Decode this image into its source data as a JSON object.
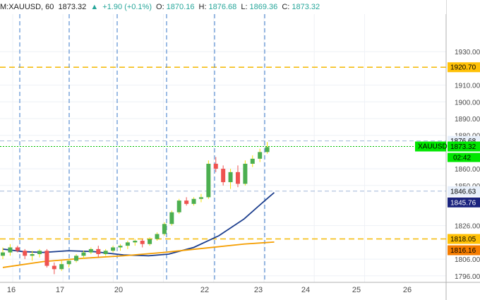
{
  "header": {
    "symbol": "M:XAUUSD, 60",
    "price": "1873.32",
    "change_icon": "triangle-up-icon",
    "change": "+1.90 (+0.1%)",
    "o_label": "O:",
    "o_val": "1870.16",
    "h_label": "H:",
    "h_val": "1876.68",
    "l_label": "L:",
    "l_val": "1869.36",
    "c_label": "C:",
    "c_val": "1873.32"
  },
  "axis": {
    "y_ticks": [
      "1930.00",
      "1910.00",
      "1900.00",
      "1890.00",
      "1880.00",
      "1860.00",
      "1850.00",
      "1826.00",
      "1806.00",
      "1796.00"
    ],
    "x_ticks": [
      "16",
      "17",
      "20",
      "22",
      "23",
      "24",
      "25",
      "26"
    ],
    "countdown": "02:42"
  },
  "price_tags": [
    {
      "id": "tag-1920",
      "text": "1920.70",
      "bg": "#ffc107",
      "color": "#000000"
    },
    {
      "id": "tag-1876",
      "text": "1876.68",
      "bg": "#e8f0fb",
      "color": "#000000"
    },
    {
      "id": "tag-1873",
      "text": "1873.32",
      "bg": "#00e600",
      "color": "#000000",
      "label": "XAUUSD"
    },
    {
      "id": "tag-1846-63",
      "text": "1846.63",
      "bg": "#e8f0fb",
      "color": "#000000"
    },
    {
      "id": "tag-1845",
      "text": "1845.76",
      "bg": "#1a237e",
      "color": "#ffffff"
    },
    {
      "id": "tag-1818",
      "text": "1818.05",
      "bg": "#ffc107",
      "color": "#000000"
    },
    {
      "id": "tag-1816",
      "text": "1816.16",
      "bg": "#f57c00",
      "color": "#000000"
    }
  ],
  "colors": {
    "up": "#26a69a",
    "down": "#ef5350",
    "candle_up": "#4caf50",
    "candle_up_wick": "#f5e000",
    "ma_fast": "#1a3c8c",
    "ma_slow": "#f59e00",
    "level_line": "#f5b800",
    "vline": "#3a78c8",
    "price_line": "#00c000"
  },
  "chart_data": {
    "type": "candlestick",
    "title": "XAUUSD, 60",
    "x_categories": [
      "16",
      "17",
      "20",
      "22",
      "23",
      "24",
      "25",
      "26"
    ],
    "y_range": [
      1790,
      1938
    ],
    "horizontal_levels": [
      1920.7,
      1876.68,
      1846.63,
      1818.05
    ],
    "last_price": 1873.32,
    "series": [
      {
        "kind": "ma",
        "color": "#1a3c8c",
        "points": [
          [
            0,
            1812
          ],
          [
            0.4,
            1810.5
          ],
          [
            0.8,
            1810
          ],
          [
            1.3,
            1811
          ],
          [
            1.8,
            1810.5
          ],
          [
            2.4,
            1808.5
          ],
          [
            2.9,
            1808
          ],
          [
            3.3,
            1809
          ],
          [
            3.8,
            1813
          ],
          [
            4.3,
            1820
          ],
          [
            4.8,
            1830
          ],
          [
            5.1,
            1838
          ],
          [
            5.4,
            1845.8
          ]
        ]
      },
      {
        "kind": "ma",
        "color": "#f59e00",
        "points": [
          [
            0,
            1801
          ],
          [
            0.8,
            1804.5
          ],
          [
            1.6,
            1806.5
          ],
          [
            2.4,
            1808
          ],
          [
            3.2,
            1810
          ],
          [
            4.0,
            1812.5
          ],
          [
            4.8,
            1815
          ],
          [
            5.4,
            1816.2
          ]
        ]
      },
      {
        "kind": "candles",
        "ohlc": [
          [
            1808,
            1813,
            1806,
            1810
          ],
          [
            1810,
            1815,
            1808,
            1813
          ],
          [
            1813,
            1814,
            1810,
            1811
          ],
          [
            1811,
            1812,
            1806,
            1808
          ],
          [
            1808,
            1811,
            1805,
            1809
          ],
          [
            1809,
            1812,
            1807,
            1811
          ],
          [
            1811,
            1812,
            1801,
            1802
          ],
          [
            1802,
            1804,
            1797,
            1800
          ],
          [
            1800,
            1805,
            1799,
            1803
          ],
          [
            1803,
            1806,
            1801,
            1805
          ],
          [
            1805,
            1809,
            1804,
            1808
          ],
          [
            1808,
            1811,
            1806,
            1810
          ],
          [
            1810,
            1813,
            1809,
            1812
          ],
          [
            1812,
            1814,
            1807,
            1809
          ],
          [
            1809,
            1812,
            1808,
            1811
          ],
          [
            1811,
            1814,
            1810,
            1813
          ],
          [
            1813,
            1815,
            1811,
            1814
          ],
          [
            1814,
            1817,
            1812,
            1816
          ],
          [
            1816,
            1818,
            1814,
            1817
          ],
          [
            1817,
            1818,
            1813,
            1815
          ],
          [
            1815,
            1819,
            1814,
            1818
          ],
          [
            1818,
            1822,
            1817,
            1821
          ],
          [
            1821,
            1828,
            1820,
            1827
          ],
          [
            1827,
            1835,
            1826,
            1834
          ],
          [
            1834,
            1842,
            1833,
            1841
          ],
          [
            1841,
            1843,
            1838,
            1839
          ],
          [
            1839,
            1843,
            1838,
            1842
          ],
          [
            1842,
            1845,
            1840,
            1843
          ],
          [
            1843,
            1865,
            1842,
            1863
          ],
          [
            1863,
            1867,
            1858,
            1860
          ],
          [
            1860,
            1862,
            1850,
            1852
          ],
          [
            1852,
            1860,
            1848,
            1858
          ],
          [
            1858,
            1862,
            1849,
            1851
          ],
          [
            1851,
            1865,
            1850,
            1863
          ],
          [
            1863,
            1868,
            1861,
            1866
          ],
          [
            1866,
            1872,
            1864,
            1870
          ],
          [
            1870,
            1876,
            1869,
            1873
          ]
        ]
      }
    ]
  }
}
